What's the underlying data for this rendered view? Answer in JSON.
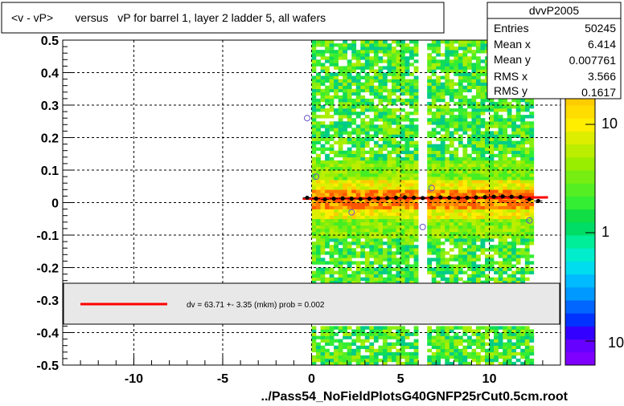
{
  "title": "<v - vP>       versus   vP for barrel 1, layer 2 ladder 5, all wafers",
  "footer": "../Pass54_NoFieldPlotsG40GNFP25rCut0.5cm.root",
  "stats": {
    "name": "dvvP2005",
    "rows": [
      {
        "label": "Entries",
        "value": "50245"
      },
      {
        "label": "Mean x",
        "value": "6.414"
      },
      {
        "label": "Mean y",
        "value": "0.007761"
      },
      {
        "label": "RMS x",
        "value": "3.566"
      },
      {
        "label": "RMS y",
        "value": "0.1617"
      }
    ]
  },
  "fit_legend": "dv =   63.71 +-  3.35 (mkm) prob = 0.002",
  "colorbar_labels": [
    "10",
    "1",
    "10"
  ],
  "colors": {
    "fit_line": "#ff0000",
    "profile_points": "#000000"
  },
  "chart_data": {
    "type": "heatmap",
    "xlim": [
      -14,
      14
    ],
    "ylim": [
      -0.5,
      0.5
    ],
    "x_ticks": [
      -10,
      -5,
      0,
      5,
      10
    ],
    "x_tick_labels": [
      "-10",
      "-5",
      "0",
      "5",
      "10"
    ],
    "y_ticks": [
      -0.5,
      -0.4,
      -0.3,
      -0.2,
      -0.1,
      0,
      0.1,
      0.2,
      0.3,
      0.4,
      0.5
    ],
    "y_tick_labels": [
      "-0.5",
      "-0.4",
      "-0.3",
      "-0.2",
      "-0.1",
      "0",
      "0.1",
      "0.2",
      "0.3",
      "0.4",
      "0.5"
    ],
    "grid": true,
    "data_x_range": [
      0,
      12.5
    ],
    "dense_band_y": [
      -0.05,
      0.05
    ],
    "profile_points": {
      "x": [
        -0.25,
        0.25,
        0.75,
        1.25,
        1.75,
        2.25,
        2.75,
        3.25,
        3.75,
        4.25,
        4.75,
        5.25,
        5.75,
        6.25,
        6.75,
        7.25,
        7.75,
        8.25,
        8.75,
        9.25,
        9.75,
        10.25,
        10.75,
        11.25,
        11.75,
        12.25,
        12.75
      ],
      "y": [
        0.015,
        0.012,
        0.01,
        0.012,
        0.013,
        0.012,
        0.011,
        0.012,
        0.013,
        0.014,
        0.015,
        0.016,
        0.015,
        0.014,
        0.015,
        0.016,
        0.015,
        0.014,
        0.015,
        0.016,
        0.017,
        0.018,
        0.019,
        0.018,
        0.017,
        0.01,
        0.005
      ]
    },
    "outlier_points": {
      "x": [
        -0.25,
        0.25,
        2.25,
        6.25,
        6.75,
        12.25
      ],
      "y": [
        0.26,
        0.08,
        -0.03,
        -0.075,
        0.045,
        -0.055
      ]
    },
    "fit_line": {
      "x": [
        -0.5,
        13.3
      ],
      "y": [
        0.012,
        0.016
      ]
    }
  }
}
